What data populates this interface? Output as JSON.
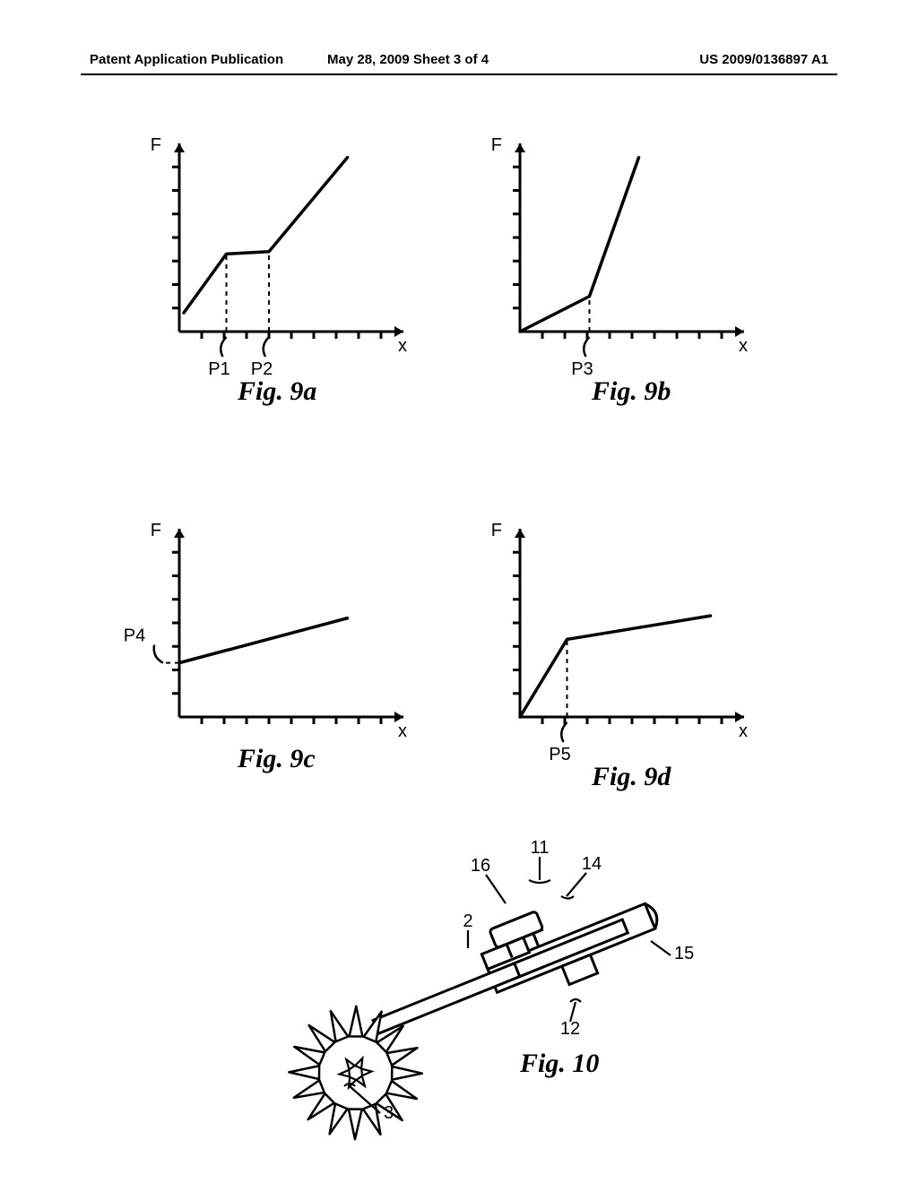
{
  "header": {
    "left": "Patent Application Publication",
    "center": "May 28, 2009  Sheet 3 of 4",
    "right": "US 2009/0136897 A1"
  },
  "chart_style": {
    "stroke": "#000000",
    "stroke_width_axis": 3,
    "stroke_width_curve": 3.5,
    "stroke_width_tick": 3,
    "stroke_width_dash": 2,
    "dash_pattern": "5,5",
    "tick_len": 8,
    "arrow_size": 10,
    "axis_label_fontsize": 20,
    "axis_label_fontfamily": "Arial, Helvetica, sans-serif",
    "point_label_fontsize": 20,
    "point_label_fontfamily": "Arial, Helvetica, sans-serif",
    "caption_fontsize": 30,
    "caption_fontfamily": "Times New Roman, serif",
    "background": "#ffffff"
  },
  "fig9a": {
    "type": "line",
    "caption": "Fig. 9a",
    "x_axis_label": "x",
    "y_axis_label": "F",
    "y_range": [
      0,
      8
    ],
    "x_range": [
      0,
      10
    ],
    "y_ticks": [
      1,
      2,
      3,
      4,
      5,
      6,
      7
    ],
    "x_ticks": [
      1,
      2,
      3,
      4,
      5,
      6,
      7,
      8,
      9
    ],
    "curve": [
      [
        0.2,
        0.8
      ],
      [
        2.1,
        3.3
      ],
      [
        4.0,
        3.4
      ],
      [
        7.5,
        7.4
      ]
    ],
    "vdashes": [
      {
        "x": 2.1,
        "label": "P1"
      },
      {
        "x": 4.0,
        "label": "P2"
      }
    ]
  },
  "fig9b": {
    "type": "line",
    "caption": "Fig. 9b",
    "x_axis_label": "x",
    "y_axis_label": "F",
    "y_range": [
      0,
      8
    ],
    "x_range": [
      0,
      10
    ],
    "y_ticks": [
      1,
      2,
      3,
      4,
      5,
      6,
      7
    ],
    "x_ticks": [
      1,
      2,
      3,
      4,
      5,
      6,
      7,
      8,
      9
    ],
    "curve": [
      [
        0,
        0
      ],
      [
        3.1,
        1.5
      ],
      [
        5.3,
        7.4
      ]
    ],
    "vdashes": [
      {
        "x": 3.1,
        "label": "P3"
      }
    ]
  },
  "fig9c": {
    "type": "line",
    "caption": "Fig. 9c",
    "x_axis_label": "x",
    "y_axis_label": "F",
    "y_range": [
      0,
      8
    ],
    "x_range": [
      0,
      10
    ],
    "y_ticks": [
      1,
      2,
      3,
      4,
      5,
      6,
      7
    ],
    "x_ticks": [
      1,
      2,
      3,
      4,
      5,
      6,
      7,
      8,
      9
    ],
    "curve": [
      [
        0,
        2.3
      ],
      [
        7.5,
        4.2
      ]
    ],
    "hdashes": [
      {
        "y": 2.3,
        "label": "P4"
      }
    ]
  },
  "fig9d": {
    "type": "line",
    "caption": "Fig. 9d",
    "x_axis_label": "x",
    "y_axis_label": "F",
    "y_range": [
      0,
      8
    ],
    "x_range": [
      0,
      10
    ],
    "y_ticks": [
      1,
      2,
      3,
      4,
      5,
      6,
      7
    ],
    "x_ticks": [
      1,
      2,
      3,
      4,
      5,
      6,
      7,
      8,
      9
    ],
    "curve": [
      [
        0,
        0
      ],
      [
        2.1,
        3.3
      ],
      [
        8.5,
        4.3
      ]
    ],
    "vdashes": [
      {
        "x": 2.1,
        "label": "P5"
      }
    ]
  },
  "fig10": {
    "type": "diagram",
    "caption": "Fig. 10",
    "labels": {
      "l11": "11",
      "l16": "16",
      "l14": "14",
      "l2": "2",
      "l15": "15",
      "l12": "12",
      "l3": "3"
    }
  }
}
